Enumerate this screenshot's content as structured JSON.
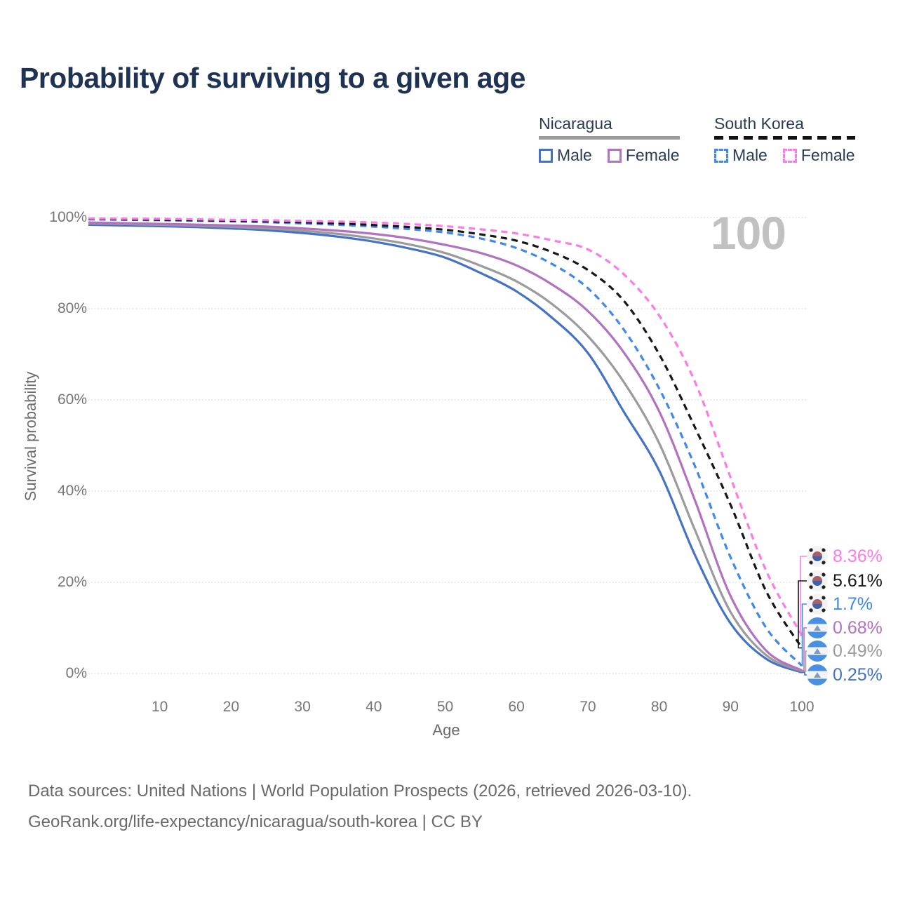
{
  "title": "Probability of surviving to a given age",
  "watermark": "100",
  "legend": {
    "groups": [
      {
        "country": "Nicaragua",
        "line_style": "solid",
        "items": [
          {
            "label": "Male",
            "color": "#4472c4"
          },
          {
            "label": "Female",
            "color": "#b272c0"
          }
        ]
      },
      {
        "country": "South Korea",
        "line_style": "dashed",
        "items": [
          {
            "label": "Male",
            "color": "#3f88ee"
          },
          {
            "label": "Female",
            "color": "#fb7ce8"
          }
        ]
      }
    ]
  },
  "chart_data": {
    "type": "line",
    "title": "Probability of surviving to a given age",
    "xlabel": "Age",
    "ylabel": "Survival probability",
    "xlim": [
      0,
      100
    ],
    "ylim": [
      0,
      100
    ],
    "grid": true,
    "legend_position": "top-right",
    "xticks": [
      10,
      20,
      30,
      40,
      50,
      60,
      70,
      80,
      90,
      100
    ],
    "ytick_labels": [
      "0%",
      "20%",
      "40%",
      "60%",
      "80%",
      "100%"
    ],
    "x": [
      0,
      5,
      10,
      15,
      20,
      25,
      30,
      35,
      40,
      45,
      50,
      55,
      60,
      65,
      70,
      75,
      80,
      85,
      90,
      95,
      100
    ],
    "series": [
      {
        "key": "south-korea-female",
        "country": "South Korea",
        "sex": "Female",
        "style": "dashed",
        "color": "#fb7ce8",
        "flag": "kr",
        "end_label": "8.36%",
        "values": [
          99.8,
          99.75,
          99.7,
          99.6,
          99.5,
          99.4,
          99.25,
          99.1,
          98.9,
          98.55,
          98.1,
          97.4,
          96.5,
          95.0,
          93.0,
          87.6,
          78.5,
          64.0,
          43.0,
          22.5,
          8.36
        ]
      },
      {
        "key": "south-korea-country-line",
        "country": "South Korea",
        "sex": "All",
        "style": "dashed",
        "color": "#161616",
        "flag": "kr",
        "end_label": "5.61%",
        "values": [
          99.7,
          99.6,
          99.5,
          99.4,
          99.3,
          99.15,
          98.95,
          98.7,
          98.35,
          97.9,
          97.3,
          96.3,
          94.9,
          92.4,
          88.5,
          81.8,
          70.0,
          54.0,
          37.0,
          18.0,
          5.61
        ]
      },
      {
        "key": "south-korea-male",
        "country": "South Korea",
        "sex": "Male",
        "style": "dashed",
        "color": "#3f88ee",
        "flag": "kr",
        "end_label": "1.7%",
        "values": [
          99.6,
          99.5,
          99.4,
          99.3,
          99.15,
          98.95,
          98.7,
          98.4,
          98.0,
          97.45,
          96.7,
          95.4,
          93.3,
          89.8,
          84.5,
          75.5,
          62.5,
          45.5,
          25.5,
          10.0,
          1.7
        ]
      },
      {
        "key": "nicaragua-female",
        "country": "Nicaragua",
        "sex": "Female",
        "style": "solid",
        "color": "#b272c0",
        "flag": "ni",
        "end_label": "0.68%",
        "values": [
          98.9,
          98.75,
          98.6,
          98.45,
          98.25,
          98.0,
          97.6,
          97.1,
          96.4,
          95.4,
          94.0,
          92.2,
          89.5,
          85.3,
          79.5,
          70.5,
          57.5,
          38.0,
          17.0,
          5.0,
          0.68
        ]
      },
      {
        "key": "nicaragua-country-line",
        "country": "Nicaragua",
        "sex": "All",
        "style": "solid",
        "color": "#9b9b9b",
        "flag": "ni",
        "end_label": "0.49%",
        "values": [
          98.7,
          98.55,
          98.4,
          98.2,
          97.95,
          97.6,
          97.1,
          96.4,
          95.4,
          94.1,
          92.2,
          89.4,
          86.0,
          81.0,
          74.0,
          64.0,
          50.5,
          31.5,
          13.5,
          4.0,
          0.49
        ]
      },
      {
        "key": "nicaragua-male",
        "country": "Nicaragua",
        "sex": "Male",
        "style": "solid",
        "color": "#4472c4",
        "flag": "ni",
        "end_label": "0.25%",
        "values": [
          98.4,
          98.25,
          98.1,
          97.9,
          97.6,
          97.2,
          96.6,
          95.8,
          94.7,
          93.2,
          91.2,
          87.8,
          83.8,
          78.0,
          70.3,
          57.5,
          44.5,
          26.0,
          11.0,
          3.2,
          0.25
        ]
      }
    ]
  },
  "footer": {
    "line1": "Data sources: United Nations | World Population Prospects (2026, retrieved 2026-03-10).",
    "line2": "GeoRank.org/life-expectancy/nicaragua/south-korea | CC BY"
  }
}
